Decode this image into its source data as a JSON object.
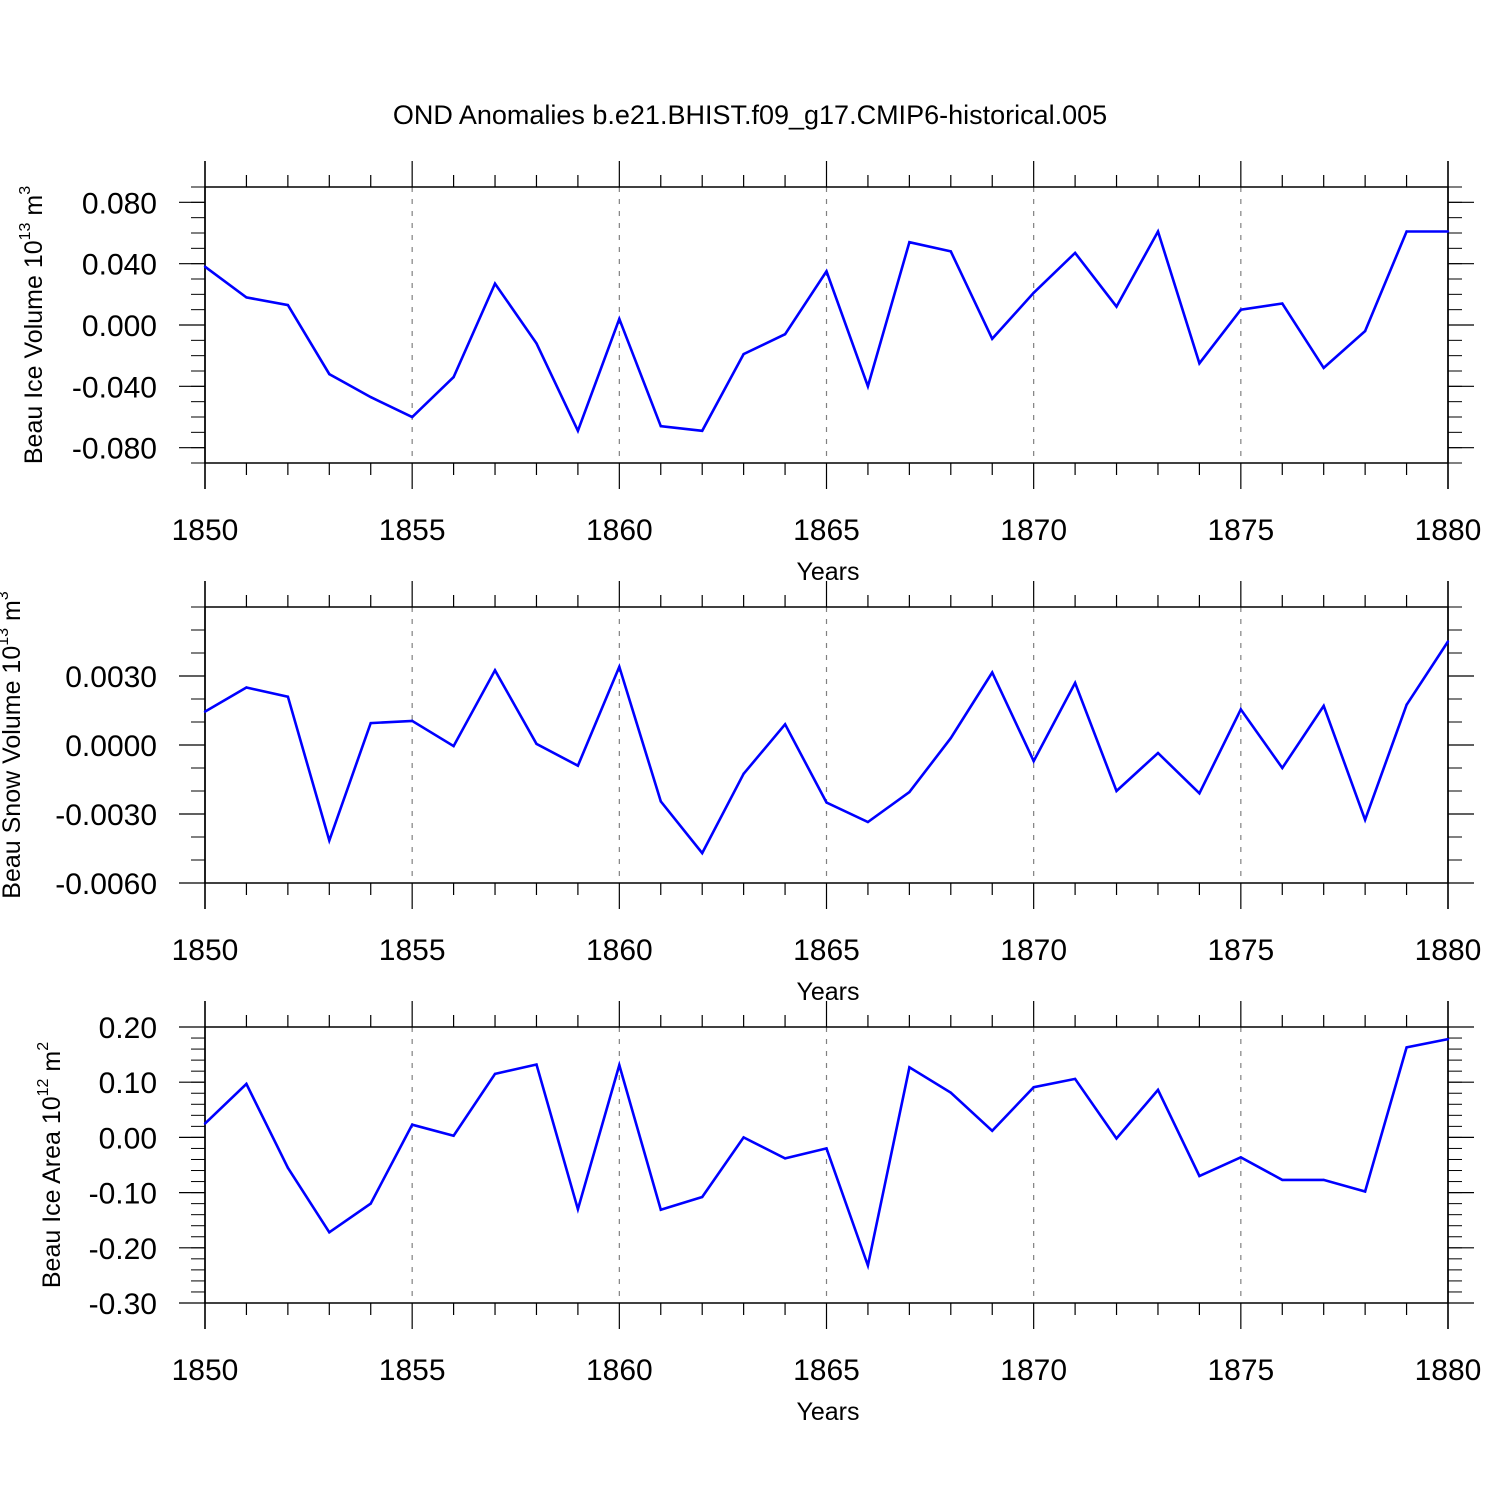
{
  "figure": {
    "title": "OND Anomalies b.e21.BHIST.f09_g17.CMIP6-historical.005"
  },
  "colors": {
    "series": "#0000ff",
    "axis": "#000000",
    "grid": "#808080",
    "background": "#ffffff"
  },
  "chart_data": [
    {
      "type": "line",
      "name": "ice-volume",
      "ylabel_main": "Beau Ice Volume 10",
      "ylabel_exp": "13",
      "ylabel_unit": " m",
      "ylabel_unit_exp": "3",
      "xlabel": "Years",
      "xlim": [
        1850,
        1880
      ],
      "ylim": [
        -0.09,
        0.09
      ],
      "yticks": [
        -0.08,
        -0.04,
        0.0,
        0.04,
        0.08
      ],
      "ytick_labels": [
        "-0.080",
        "-0.040",
        "0.000",
        "0.040",
        "0.080"
      ],
      "yminor_step": 0.01,
      "xticks": [
        1850,
        1855,
        1860,
        1865,
        1870,
        1875,
        1880
      ],
      "xtick_labels": [
        "1850",
        "1855",
        "1860",
        "1865",
        "1870",
        "1875",
        "1880"
      ],
      "grid_x": [
        1855,
        1860,
        1865,
        1870,
        1875
      ],
      "x": [
        1850,
        1851,
        1852,
        1853,
        1854,
        1855,
        1856,
        1857,
        1858,
        1859,
        1860,
        1861,
        1862,
        1863,
        1864,
        1865,
        1866,
        1867,
        1868,
        1869,
        1870,
        1871,
        1872,
        1873,
        1874,
        1875,
        1876,
        1877,
        1878,
        1879,
        1880
      ],
      "values": [
        0.038,
        0.018,
        0.013,
        -0.032,
        -0.047,
        -0.06,
        -0.034,
        0.027,
        -0.012,
        -0.069,
        0.004,
        -0.066,
        -0.069,
        -0.019,
        -0.006,
        0.035,
        -0.04,
        0.054,
        0.048,
        -0.009,
        0.021,
        0.047,
        0.012,
        0.061,
        -0.025,
        0.01,
        0.014,
        -0.028,
        -0.004,
        0.061,
        0.061
      ]
    },
    {
      "type": "line",
      "name": "snow-volume",
      "ylabel_main": "Beau Snow Volume 10",
      "ylabel_exp": "13",
      "ylabel_unit": " m",
      "ylabel_unit_exp": "3",
      "xlabel": "Years",
      "xlim": [
        1850,
        1880
      ],
      "ylim": [
        -0.006,
        0.006
      ],
      "yticks": [
        -0.006,
        -0.003,
        0.0,
        0.003
      ],
      "ytick_labels": [
        "-0.0060",
        "-0.0030",
        "0.0000",
        "0.0030"
      ],
      "yminor_step": 0.001,
      "xticks": [
        1850,
        1855,
        1860,
        1865,
        1870,
        1875,
        1880
      ],
      "xtick_labels": [
        "1850",
        "1855",
        "1860",
        "1865",
        "1870",
        "1875",
        "1880"
      ],
      "grid_x": [
        1855,
        1860,
        1865,
        1870,
        1875
      ],
      "x": [
        1850,
        1851,
        1852,
        1853,
        1854,
        1855,
        1856,
        1857,
        1858,
        1859,
        1860,
        1861,
        1862,
        1863,
        1864,
        1865,
        1866,
        1867,
        1868,
        1869,
        1870,
        1871,
        1872,
        1873,
        1874,
        1875,
        1876,
        1877,
        1878,
        1879,
        1880
      ],
      "values": [
        0.00145,
        0.0025,
        0.0021,
        -0.00415,
        0.00095,
        0.00105,
        -5e-05,
        0.00325,
        5e-05,
        -0.0009,
        0.0034,
        -0.00245,
        -0.0047,
        -0.00125,
        0.0009,
        -0.0025,
        -0.00335,
        -0.00205,
        0.0003,
        0.00315,
        -0.0007,
        0.0027,
        -0.002,
        -0.00035,
        -0.0021,
        0.00155,
        -0.001,
        0.0017,
        -0.00325,
        0.00175,
        0.0045
      ]
    },
    {
      "type": "line",
      "name": "ice-area",
      "ylabel_main": "Beau Ice Area 10",
      "ylabel_exp": "12",
      "ylabel_unit": " m",
      "ylabel_unit_exp": "2",
      "xlabel": "Years",
      "xlim": [
        1850,
        1880
      ],
      "ylim": [
        -0.3,
        0.2
      ],
      "yticks": [
        -0.3,
        -0.2,
        -0.1,
        0.0,
        0.1,
        0.2
      ],
      "ytick_labels": [
        "-0.30",
        "-0.20",
        "-0.10",
        "0.00",
        "0.10",
        "0.20"
      ],
      "yminor_step": 0.02,
      "xticks": [
        1850,
        1855,
        1860,
        1865,
        1870,
        1875,
        1880
      ],
      "xtick_labels": [
        "1850",
        "1855",
        "1860",
        "1865",
        "1870",
        "1875",
        "1880"
      ],
      "grid_x": [
        1855,
        1860,
        1865,
        1870,
        1875
      ],
      "x": [
        1850,
        1851,
        1852,
        1853,
        1854,
        1855,
        1856,
        1857,
        1858,
        1859,
        1860,
        1861,
        1862,
        1863,
        1864,
        1865,
        1866,
        1867,
        1868,
        1869,
        1870,
        1871,
        1872,
        1873,
        1874,
        1875,
        1876,
        1877,
        1878,
        1879,
        1880
      ],
      "values": [
        0.025,
        0.097,
        -0.055,
        -0.172,
        -0.12,
        0.023,
        0.003,
        0.115,
        0.132,
        -0.13,
        0.131,
        -0.131,
        -0.108,
        0.0,
        -0.038,
        -0.02,
        -0.232,
        0.127,
        0.081,
        0.012,
        0.091,
        0.106,
        -0.002,
        0.086,
        -0.07,
        -0.036,
        -0.077,
        -0.077,
        -0.098,
        0.163,
        0.178
      ]
    }
  ]
}
